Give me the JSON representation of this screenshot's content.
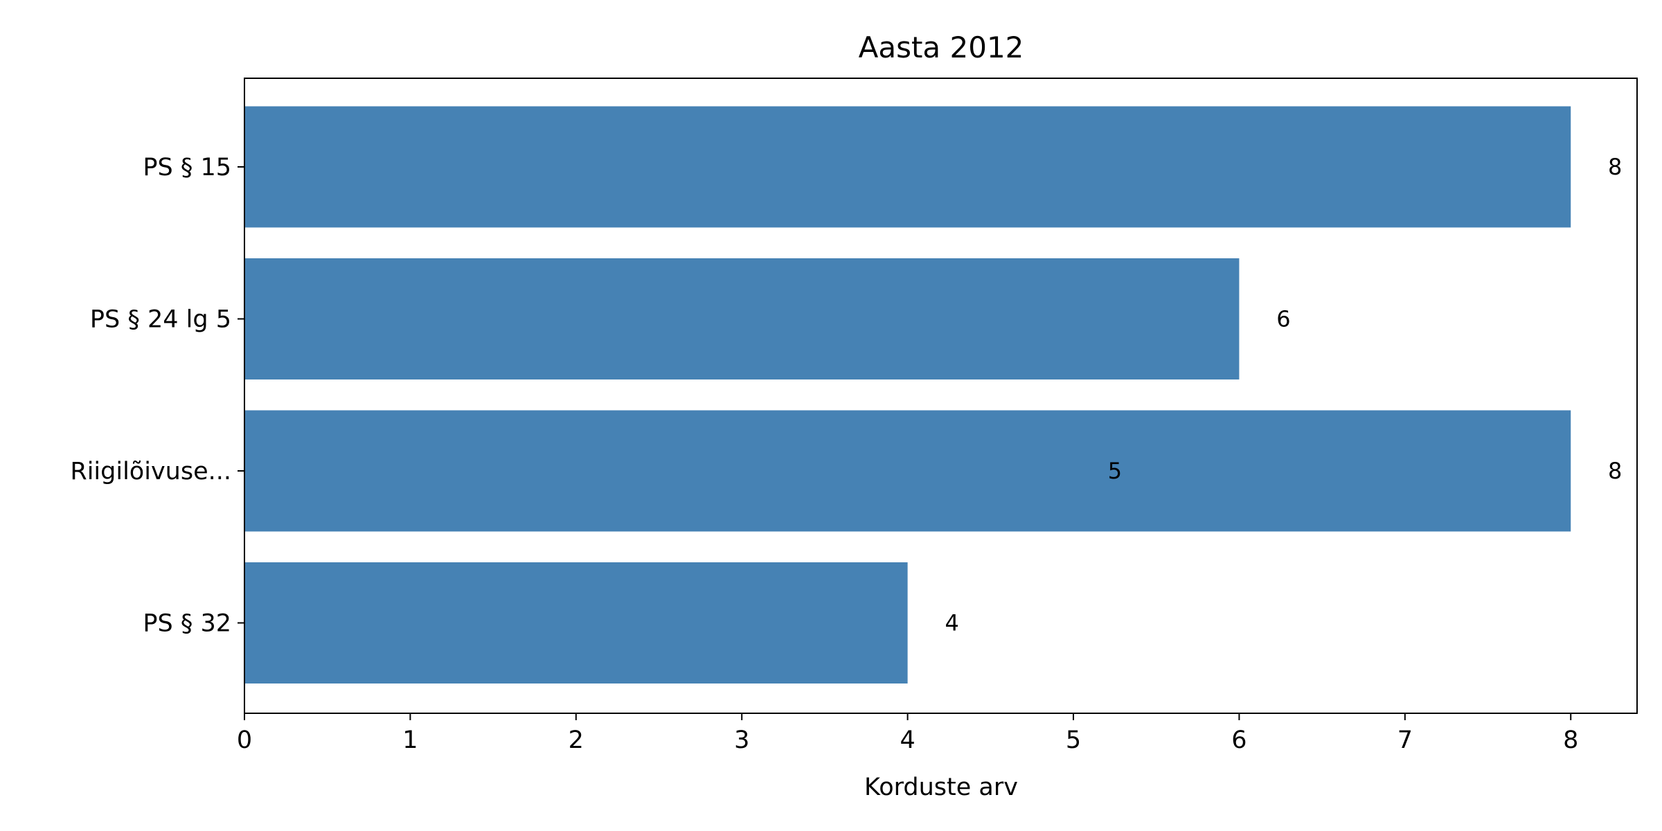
{
  "chart_data": {
    "type": "bar",
    "orientation": "horizontal",
    "title": "Aasta 2012",
    "xlabel": "Korduste arv",
    "ylabel": "",
    "categories": [
      "PS § 15",
      "PS § 24 lg 5",
      "Riigilõivuse...",
      "PS § 32"
    ],
    "values": [
      8,
      6,
      8,
      4
    ],
    "value_labels": [
      "8",
      "6",
      "8",
      "4"
    ],
    "annotations": [
      {
        "category": "Riigilõivuse...",
        "text": "5",
        "x": 5.25
      }
    ],
    "xlim": [
      0,
      8.4
    ],
    "xticks": [
      0,
      1,
      2,
      3,
      4,
      5,
      6,
      7,
      8
    ],
    "grid": false,
    "bar_color": "#4682b4"
  }
}
